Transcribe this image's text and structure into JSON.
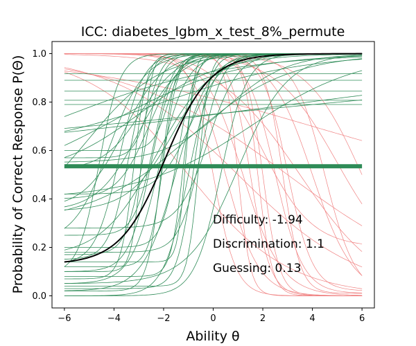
{
  "chart_data": {
    "type": "line",
    "title": "ICC: diabetes_lgbm_x_test_8%_permute",
    "xlabel": "Ability θ",
    "ylabel": "Probability of Correct Response P(Θ)",
    "xlim": [
      -6.5,
      6.5
    ],
    "ylim": [
      -0.05,
      1.05
    ],
    "xticks": [
      -6,
      -4,
      -2,
      0,
      2,
      4,
      6
    ],
    "yticks": [
      0.0,
      0.2,
      0.4,
      0.6,
      0.8,
      1.0
    ],
    "grid": false,
    "colors": {
      "positive_items": "#2e8b57",
      "negative_items": "#f08080",
      "highlighted_item": "#000000",
      "flat_item": "#2e8b57"
    },
    "highlighted_item": {
      "difficulty": -1.94,
      "discrimination": 1.1,
      "guessing": 0.13
    },
    "flat_item_level": 0.535,
    "positive_items": [
      {
        "a": 2.2,
        "b": -2.5,
        "c": 0.1
      },
      {
        "a": 1.8,
        "b": -2.2,
        "c": 0.05
      },
      {
        "a": 2.8,
        "b": -2.8,
        "c": 0.17
      },
      {
        "a": 1.5,
        "b": -1.5,
        "c": 0.02
      },
      {
        "a": 3.5,
        "b": -2.0,
        "c": 0.12
      },
      {
        "a": 1.2,
        "b": -3.0,
        "c": 0.35
      },
      {
        "a": 2.0,
        "b": -1.0,
        "c": 0.0
      },
      {
        "a": 4.0,
        "b": -1.2,
        "c": 0.08
      },
      {
        "a": 1.6,
        "b": -2.6,
        "c": 0.4
      },
      {
        "a": 2.5,
        "b": -3.4,
        "c": 0.15
      },
      {
        "a": 3.0,
        "b": -0.8,
        "c": 0.03
      },
      {
        "a": 1.4,
        "b": -4.2,
        "c": 0.22
      },
      {
        "a": 2.3,
        "b": -0.5,
        "c": 0.18
      },
      {
        "a": 0.6,
        "b": -3.0,
        "c": 0.5
      },
      {
        "a": 0.5,
        "b": -1.0,
        "c": 0.3
      },
      {
        "a": 3.2,
        "b": -1.8,
        "c": 0.6
      },
      {
        "a": 1.9,
        "b": 0.3,
        "c": 0.0
      },
      {
        "a": 0.4,
        "b": -4.0,
        "c": 0.45
      },
      {
        "a": 2.6,
        "b": -2.4,
        "c": 0.25
      },
      {
        "a": 5.0,
        "b": -2.9,
        "c": 0.1
      },
      {
        "a": 1.1,
        "b": -1.6,
        "c": 0.35
      },
      {
        "a": 0.8,
        "b": 0.5,
        "c": 0.55
      },
      {
        "a": 3.8,
        "b": -3.2,
        "c": 0.07
      },
      {
        "a": 1.7,
        "b": -0.2,
        "c": 0.28
      },
      {
        "a": 0.35,
        "b": -2.0,
        "c": 0.6
      },
      {
        "a": 2.1,
        "b": -3.8,
        "c": 0.13
      },
      {
        "a": 4.5,
        "b": -0.6,
        "c": 0.04
      },
      {
        "a": 1.3,
        "b": -2.9,
        "c": 0.52
      },
      {
        "a": 0.7,
        "b": -5.0,
        "c": 0.3
      },
      {
        "a": 2.9,
        "b": -1.4,
        "c": 0.2
      },
      {
        "a": 1.0,
        "b": 1.0,
        "c": 0.05
      },
      {
        "a": 3.3,
        "b": -2.6,
        "c": 0.57
      },
      {
        "a": 0.45,
        "b": 1.5,
        "c": 0.4
      },
      {
        "a": 2.4,
        "b": -4.6,
        "c": 0.09
      },
      {
        "a": 0.9,
        "b": -2.3,
        "c": 0.16
      },
      {
        "a": 6.0,
        "b": -1.1,
        "c": 0.14
      },
      {
        "a": 1.25,
        "b": -3.6,
        "c": 0.36
      },
      {
        "a": 0.3,
        "b": -6.0,
        "c": 0.48
      },
      {
        "a": 3.6,
        "b": -2.1,
        "c": 0.02
      },
      {
        "a": 1.55,
        "b": -0.9,
        "c": 0.42
      },
      {
        "a": 0.0,
        "b": 0.0,
        "c": 0.835
      },
      {
        "a": 0.0,
        "b": 0.0,
        "c": 0.78
      },
      {
        "a": 0.0,
        "b": 0.0,
        "c": 0.69
      },
      {
        "a": 0.0,
        "b": 0.0,
        "c": 0.615
      },
      {
        "a": 0.0,
        "b": 0.0,
        "c": 0.58
      },
      {
        "a": 0.08,
        "b": 0.0,
        "c": 0.5
      },
      {
        "a": 0.12,
        "b": 2.0,
        "c": 0.55
      }
    ],
    "negative_items": [
      {
        "a": -2.5,
        "b": 1.5,
        "c": 0.0
      },
      {
        "a": -1.8,
        "b": 2.5,
        "c": 0.01
      },
      {
        "a": -3.0,
        "b": 2.0,
        "c": 0.0
      },
      {
        "a": -1.2,
        "b": 4.0,
        "c": 0.0
      },
      {
        "a": -2.0,
        "b": 3.0,
        "c": 0.02
      },
      {
        "a": -0.8,
        "b": 5.0,
        "c": 0.1
      },
      {
        "a": -4.0,
        "b": 1.0,
        "c": 0.0
      },
      {
        "a": -1.5,
        "b": 0.5,
        "c": 0.0
      },
      {
        "a": -0.6,
        "b": 3.5,
        "c": 0.0
      },
      {
        "a": -2.8,
        "b": 2.8,
        "c": 0.01
      },
      {
        "a": -1.0,
        "b": 2.0,
        "c": 0.2
      },
      {
        "a": -0.4,
        "b": 1.0,
        "c": 0.0
      },
      {
        "a": -3.5,
        "b": 1.8,
        "c": 0.0
      },
      {
        "a": -1.6,
        "b": 4.5,
        "c": 0.0
      },
      {
        "a": -0.5,
        "b": -1.0,
        "c": 0.0
      },
      {
        "a": -0.3,
        "b": 3.0,
        "c": 0.0
      },
      {
        "a": -2.2,
        "b": 0.0,
        "c": 0.0
      },
      {
        "a": -0.9,
        "b": 6.0,
        "c": 0.0
      },
      {
        "a": -1.3,
        "b": 1.2,
        "c": 0.0
      },
      {
        "a": -0.2,
        "b": 4.0,
        "c": 0.4
      }
    ]
  }
}
